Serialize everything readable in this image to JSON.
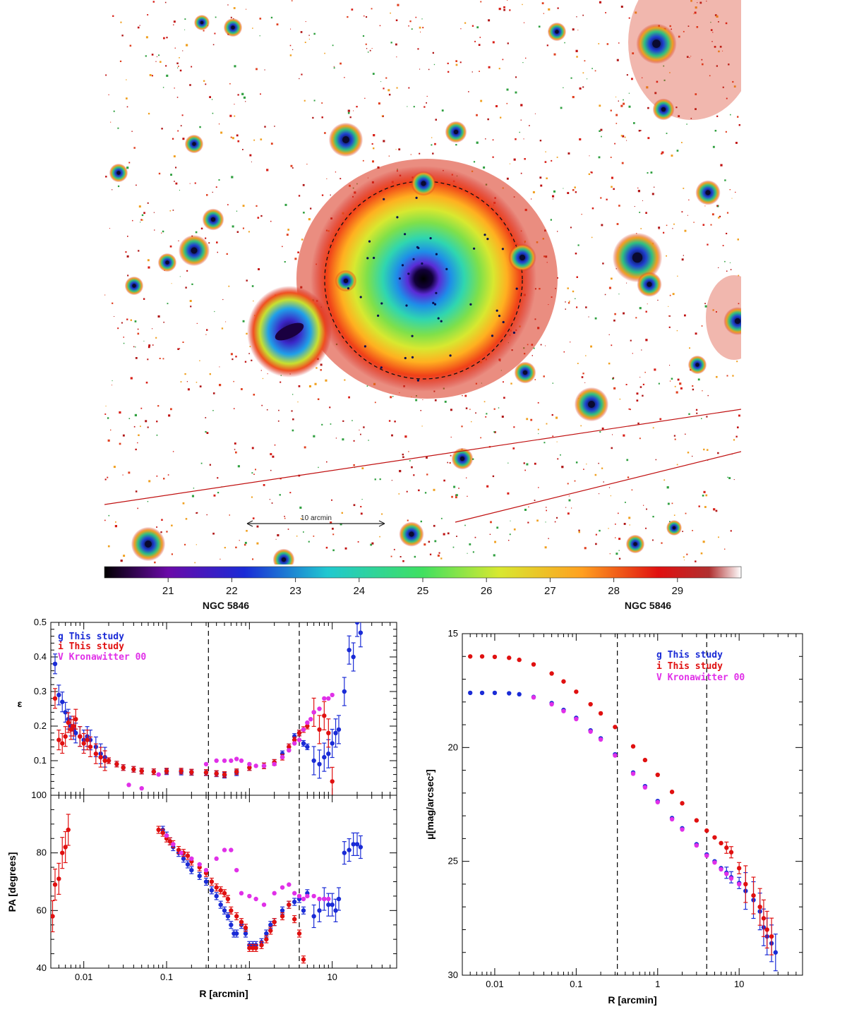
{
  "image_panel": {
    "scale_bar_label": "10 arcmin",
    "colorbar_ticks": [
      "21",
      "22",
      "23",
      "24",
      "25",
      "26",
      "27",
      "28",
      "29"
    ],
    "caption_left": "NGC 5846",
    "caption_right": "NGC 5846"
  },
  "colors": {
    "g": "#1a2bd6",
    "i": "#e01010",
    "V": "#e030e8"
  },
  "chart_data": [
    {
      "type": "scatter",
      "panel": "ellipticity",
      "xscale": "log",
      "xlim": [
        0.004,
        60
      ],
      "ylim": [
        0.0,
        0.5
      ],
      "ylabel": "ε",
      "yticks": [
        "0.1",
        "0.2",
        "0.3",
        "0.4",
        "0.5"
      ],
      "vlines": [
        0.32,
        4.0
      ],
      "legend": [
        "g This study",
        "i This study",
        "V Kronawitter 00"
      ],
      "series": [
        {
          "name": "g This study",
          "color": "#1a2bd6",
          "x": [
            0.0045,
            0.005,
            0.0055,
            0.006,
            0.0065,
            0.007,
            0.0075,
            0.008,
            0.009,
            0.01,
            0.011,
            0.012,
            0.014,
            0.016,
            0.018,
            0.02,
            0.025,
            0.03,
            0.04,
            0.05,
            0.07,
            0.1,
            0.15,
            0.2,
            0.3,
            0.4,
            0.5,
            0.7,
            1.0,
            1.5,
            2.0,
            2.5,
            3.0,
            3.5,
            4.0,
            4.5,
            5.0,
            6.0,
            7.0,
            8.0,
            9.0,
            10.0,
            11.0,
            12.0,
            14.0,
            16.0,
            18.0,
            20.0,
            22.0
          ],
          "y": [
            0.38,
            0.29,
            0.27,
            0.24,
            0.22,
            0.2,
            0.19,
            0.18,
            0.17,
            0.16,
            0.17,
            0.16,
            0.14,
            0.12,
            0.11,
            0.1,
            0.09,
            0.08,
            0.075,
            0.07,
            0.068,
            0.068,
            0.067,
            0.066,
            0.065,
            0.062,
            0.058,
            0.065,
            0.08,
            0.085,
            0.095,
            0.12,
            0.14,
            0.17,
            0.18,
            0.15,
            0.14,
            0.1,
            0.09,
            0.11,
            0.12,
            0.15,
            0.18,
            0.19,
            0.3,
            0.42,
            0.4,
            0.5,
            0.47
          ]
        },
        {
          "name": "i This study",
          "color": "#e01010",
          "x": [
            0.0045,
            0.005,
            0.0055,
            0.006,
            0.0065,
            0.007,
            0.0075,
            0.008,
            0.009,
            0.01,
            0.011,
            0.012,
            0.014,
            0.016,
            0.018,
            0.02,
            0.025,
            0.03,
            0.04,
            0.05,
            0.07,
            0.1,
            0.15,
            0.2,
            0.3,
            0.4,
            0.5,
            0.7,
            1.0,
            1.5,
            2.0,
            2.5,
            3.0,
            3.5,
            4.0,
            4.5,
            5.0,
            6.0,
            7.0,
            8.0,
            9.0,
            10.0
          ],
          "y": [
            0.28,
            0.16,
            0.15,
            0.17,
            0.21,
            0.19,
            0.2,
            0.22,
            0.17,
            0.15,
            0.16,
            0.14,
            0.12,
            0.11,
            0.1,
            0.1,
            0.09,
            0.08,
            0.075,
            0.07,
            0.068,
            0.07,
            0.07,
            0.067,
            0.066,
            0.063,
            0.06,
            0.068,
            0.08,
            0.085,
            0.095,
            0.11,
            0.14,
            0.16,
            0.18,
            0.19,
            0.2,
            0.24,
            0.19,
            0.23,
            0.18,
            0.04
          ]
        },
        {
          "name": "V Kronawitter 00",
          "color": "#e030e8",
          "x": [
            0.035,
            0.05,
            0.08,
            0.3,
            0.4,
            0.5,
            0.6,
            0.7,
            0.8,
            1.0,
            1.2,
            1.5,
            2.0,
            2.5,
            3.0,
            3.5,
            4.0,
            4.5,
            5.0,
            5.5,
            6.0,
            7.0,
            8.0,
            9.0,
            10.0
          ],
          "y": [
            0.03,
            0.02,
            0.06,
            0.09,
            0.1,
            0.1,
            0.1,
            0.105,
            0.1,
            0.09,
            0.085,
            0.085,
            0.09,
            0.11,
            0.13,
            0.15,
            0.16,
            0.19,
            0.21,
            0.22,
            0.24,
            0.25,
            0.28,
            0.28,
            0.29
          ]
        }
      ]
    },
    {
      "type": "scatter",
      "panel": "position_angle",
      "xscale": "log",
      "xlim": [
        0.004,
        60
      ],
      "ylim": [
        40,
        100
      ],
      "ylabel": "PA [degrees]",
      "xlabel": "R [arcmin]",
      "xticks": [
        "0.01",
        "0.1",
        "1",
        "10"
      ],
      "yticks": [
        "40",
        "60",
        "80",
        "100"
      ],
      "vlines": [
        0.32,
        4.0
      ],
      "series": [
        {
          "name": "g This study",
          "color": "#1a2bd6",
          "x": [
            0.09,
            0.1,
            0.11,
            0.12,
            0.14,
            0.16,
            0.18,
            0.2,
            0.25,
            0.3,
            0.35,
            0.4,
            0.45,
            0.5,
            0.55,
            0.6,
            0.65,
            0.7,
            0.8,
            0.9,
            1.0,
            1.1,
            1.2,
            1.4,
            1.6,
            1.8,
            2.0,
            2.5,
            3.0,
            3.5,
            4.0,
            4.5,
            5.0,
            6.0,
            7.0,
            8.0,
            9.0,
            10.0,
            11.0,
            12.0,
            14.0,
            16.0,
            18.0,
            20.0,
            22.0
          ],
          "y": [
            88,
            86,
            84,
            82,
            80,
            78,
            76,
            74,
            72,
            70,
            67,
            65,
            62,
            60,
            58,
            55,
            52,
            52,
            55,
            52,
            48,
            48,
            48,
            49,
            52,
            55,
            56,
            60,
            62,
            63,
            64,
            60,
            66,
            58,
            60,
            64,
            62,
            62,
            60,
            64,
            80,
            81,
            83,
            83,
            82
          ]
        },
        {
          "name": "i This study",
          "color": "#e01010",
          "x": [
            0.0042,
            0.0045,
            0.005,
            0.0055,
            0.006,
            0.0065,
            0.08,
            0.09,
            0.1,
            0.11,
            0.12,
            0.14,
            0.16,
            0.18,
            0.2,
            0.25,
            0.3,
            0.35,
            0.4,
            0.45,
            0.5,
            0.55,
            0.6,
            0.7,
            0.8,
            0.9,
            1.0,
            1.1,
            1.2,
            1.4,
            1.6,
            1.8,
            2.0,
            2.5,
            3.0,
            3.5,
            4.0,
            4.5
          ],
          "y": [
            58,
            69,
            71,
            80,
            82,
            88,
            88,
            87,
            85,
            84,
            83,
            81,
            80,
            79,
            77,
            75,
            73,
            70,
            68,
            67,
            66,
            64,
            60,
            58,
            56,
            54,
            47,
            47,
            47,
            48,
            50,
            53,
            56,
            58,
            62,
            57,
            52,
            43
          ]
        },
        {
          "name": "V Kronawitter 00",
          "color": "#e030e8",
          "x": [
            0.1,
            0.12,
            0.15,
            0.2,
            0.25,
            0.3,
            0.4,
            0.5,
            0.6,
            0.7,
            0.8,
            1.0,
            1.2,
            1.5,
            2.0,
            2.5,
            3.0,
            3.5,
            4.0,
            4.5,
            5.0,
            6.0,
            7.0,
            8.0,
            9.0
          ],
          "y": [
            86,
            83,
            80,
            78,
            76,
            74,
            78,
            81,
            81,
            74,
            66,
            65,
            64,
            62,
            66,
            68,
            69,
            66,
            65,
            64,
            65,
            65,
            64,
            64,
            64
          ]
        }
      ]
    },
    {
      "type": "scatter",
      "panel": "surface_brightness",
      "xscale": "log",
      "xlim": [
        0.004,
        60
      ],
      "ylim": [
        30,
        15
      ],
      "ylabel": "μ[mag/arcsec²]",
      "xlabel": "R [arcmin]",
      "xticks": [
        "0.01",
        "0.1",
        "1",
        "10"
      ],
      "yticks": [
        "15",
        "20",
        "25",
        "30"
      ],
      "vlines": [
        0.32,
        4.0
      ],
      "legend": [
        "g This study",
        "i This study",
        "V Kronawitter 00"
      ],
      "series": [
        {
          "name": "g This study",
          "color": "#1a2bd6",
          "x": [
            0.005,
            0.007,
            0.01,
            0.015,
            0.02,
            0.03,
            0.05,
            0.07,
            0.1,
            0.15,
            0.2,
            0.3,
            0.5,
            0.7,
            1.0,
            1.5,
            2.0,
            3.0,
            4.0,
            5.0,
            6.0,
            7.0,
            8.0,
            10.0,
            12.0,
            15.0,
            18.0,
            20.0,
            22.0,
            25.0,
            28.0
          ],
          "y": [
            17.6,
            17.6,
            17.6,
            17.62,
            17.66,
            17.78,
            18.05,
            18.35,
            18.7,
            19.25,
            19.6,
            20.3,
            21.1,
            21.7,
            22.35,
            23.1,
            23.55,
            24.25,
            24.7,
            25.0,
            25.3,
            25.5,
            25.7,
            25.95,
            26.3,
            26.7,
            27.2,
            27.9,
            28.3,
            28.6,
            29.0
          ]
        },
        {
          "name": "i This study",
          "color": "#e01010",
          "x": [
            0.005,
            0.007,
            0.01,
            0.015,
            0.02,
            0.03,
            0.05,
            0.07,
            0.1,
            0.15,
            0.2,
            0.3,
            0.5,
            0.7,
            1.0,
            1.5,
            2.0,
            3.0,
            4.0,
            5.0,
            6.0,
            7.0,
            8.0,
            10.0,
            12.0,
            15.0,
            18.0,
            20.0,
            22.0,
            25.0
          ],
          "y": [
            16.0,
            16.0,
            16.02,
            16.06,
            16.15,
            16.35,
            16.75,
            17.1,
            17.55,
            18.1,
            18.5,
            19.1,
            19.95,
            20.55,
            21.2,
            21.95,
            22.45,
            23.2,
            23.65,
            23.95,
            24.2,
            24.4,
            24.6,
            25.3,
            26.0,
            26.5,
            27.0,
            27.5,
            28.0,
            28.3
          ]
        },
        {
          "name": "V Kronawitter 00",
          "color": "#e030e8",
          "x": [
            0.03,
            0.05,
            0.07,
            0.1,
            0.15,
            0.2,
            0.3,
            0.5,
            0.7,
            1.0,
            1.5,
            2.0,
            3.0,
            4.0,
            5.0,
            6.0,
            7.0,
            8.0,
            10.0
          ],
          "y": [
            17.8,
            18.1,
            18.4,
            18.75,
            19.3,
            19.65,
            20.35,
            21.15,
            21.75,
            22.4,
            23.15,
            23.6,
            24.3,
            24.75,
            25.05,
            25.35,
            25.55,
            25.75,
            26.0
          ]
        }
      ]
    }
  ]
}
